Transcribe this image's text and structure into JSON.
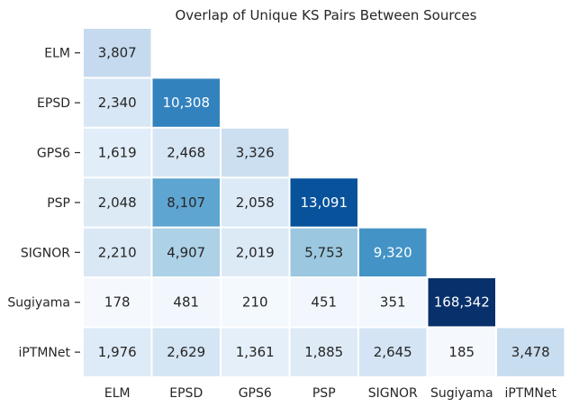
{
  "chart_data": {
    "type": "heatmap",
    "title": "Overlap of Unique KS Pairs Between Sources",
    "xlabel": "",
    "ylabel": "",
    "categories": [
      "ELM",
      "EPSD",
      "GPS6",
      "PSP",
      "SIGNOR",
      "Sugiyama",
      "iPTMNet"
    ],
    "values": [
      [
        3807,
        null,
        null,
        null,
        null,
        null,
        null
      ],
      [
        2340,
        10308,
        null,
        null,
        null,
        null,
        null
      ],
      [
        1619,
        2468,
        3326,
        null,
        null,
        null,
        null
      ],
      [
        2048,
        8107,
        2058,
        13091,
        null,
        null,
        null
      ],
      [
        2210,
        4907,
        2019,
        5753,
        9320,
        null,
        null
      ],
      [
        178,
        481,
        210,
        451,
        351,
        168342,
        null
      ],
      [
        1976,
        2629,
        1361,
        1885,
        2645,
        185,
        3478
      ]
    ],
    "value_labels": [
      [
        "3,807",
        null,
        null,
        null,
        null,
        null,
        null
      ],
      [
        "2,340",
        "10,308",
        null,
        null,
        null,
        null,
        null
      ],
      [
        "1,619",
        "2,468",
        "3,326",
        null,
        null,
        null,
        null
      ],
      [
        "2,048",
        "8,107",
        "2,058",
        "13,091",
        null,
        null,
        null
      ],
      [
        "2,210",
        "4,907",
        "2,019",
        "5,753",
        "9,320",
        null,
        null
      ],
      [
        "178",
        "481",
        "210",
        "451",
        "351",
        "168,342",
        null
      ],
      [
        "1,976",
        "2,629",
        "1,361",
        "1,885",
        "2,645",
        "185",
        "3,478"
      ]
    ],
    "mask": "upper triangle",
    "colormap": "Blues",
    "colorscale_range": [
      0,
      15000
    ],
    "colorbar": false,
    "cell_border_color": "#ffffff",
    "dark_text_color": "#262626",
    "light_text_color": "#ffffff"
  }
}
